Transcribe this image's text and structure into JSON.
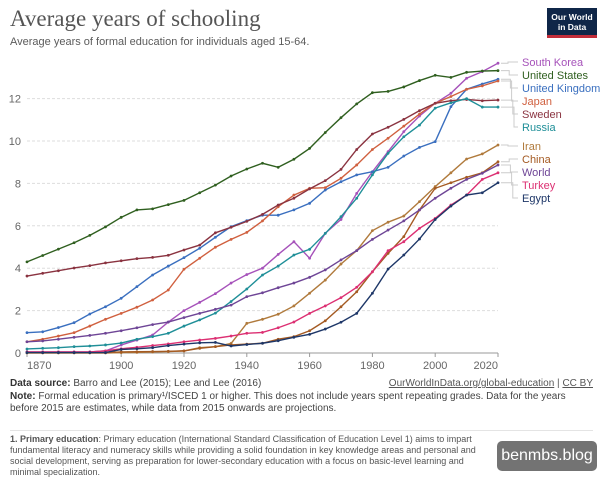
{
  "header": {
    "title": "Average years of schooling",
    "subtitle": "Average years of formal education for individuals aged 15-64.",
    "logo_line1": "Our World",
    "logo_line2": "in Data"
  },
  "chart_data": {
    "type": "line",
    "title": "Average years of schooling",
    "xlabel": "",
    "ylabel": "",
    "xlim": [
      1870,
      2020
    ],
    "ylim": [
      0,
      13.7
    ],
    "x_ticks": [
      1870,
      1900,
      1920,
      1940,
      1960,
      1980,
      2000,
      2020
    ],
    "y_ticks": [
      0,
      2,
      4,
      6,
      8,
      10,
      12
    ],
    "grid": "horizontal dashed",
    "legend": "right, inline labels",
    "x": [
      1870,
      1875,
      1880,
      1885,
      1890,
      1895,
      1900,
      1905,
      1910,
      1915,
      1920,
      1925,
      1930,
      1935,
      1940,
      1945,
      1950,
      1955,
      1960,
      1965,
      1970,
      1975,
      1980,
      1985,
      1990,
      1995,
      2000,
      2005,
      2010,
      2015,
      2020
    ],
    "series": [
      {
        "name": "South Korea",
        "color": "#a652ba",
        "values": [
          0.05,
          0.05,
          0.05,
          0.05,
          0.05,
          0.1,
          0.38,
          0.61,
          0.85,
          1.46,
          2.0,
          2.39,
          2.8,
          3.3,
          3.7,
          4.0,
          4.65,
          5.25,
          4.47,
          5.65,
          6.3,
          7.53,
          8.55,
          9.5,
          10.44,
          11.18,
          11.78,
          12.25,
          12.96,
          13.27,
          13.67
        ]
      },
      {
        "name": "United States",
        "color": "#2f5f1f",
        "values": [
          4.3,
          4.6,
          4.9,
          5.2,
          5.55,
          5.95,
          6.4,
          6.75,
          6.8,
          7.0,
          7.2,
          7.56,
          7.92,
          8.35,
          8.68,
          8.95,
          8.76,
          9.14,
          9.65,
          10.4,
          11.1,
          11.75,
          12.28,
          12.34,
          12.55,
          12.85,
          13.1,
          13.0,
          13.24,
          13.3,
          13.32
        ]
      },
      {
        "name": "United Kingdom",
        "color": "#3a6fbf",
        "values": [
          0.96,
          1.0,
          1.2,
          1.43,
          1.84,
          2.18,
          2.58,
          3.13,
          3.68,
          4.1,
          4.5,
          4.94,
          5.46,
          5.96,
          6.24,
          6.5,
          6.5,
          6.75,
          7.06,
          7.69,
          8.08,
          8.4,
          8.55,
          8.76,
          9.29,
          9.7,
          9.97,
          11.62,
          12.44,
          12.69,
          12.91
        ]
      },
      {
        "name": "Japan",
        "color": "#d0603f",
        "values": [
          0.53,
          0.65,
          0.8,
          0.96,
          1.27,
          1.59,
          1.87,
          2.16,
          2.5,
          2.97,
          3.95,
          4.47,
          4.99,
          5.36,
          5.69,
          6.23,
          6.9,
          7.45,
          7.77,
          7.8,
          8.24,
          8.87,
          9.6,
          10.13,
          10.7,
          11.27,
          11.78,
          12.1,
          12.44,
          12.6,
          12.83
        ]
      },
      {
        "name": "Sweden",
        "color": "#8a3340",
        "values": [
          3.63,
          3.76,
          3.88,
          4.01,
          4.12,
          4.25,
          4.35,
          4.45,
          4.51,
          4.61,
          4.86,
          5.09,
          5.67,
          5.93,
          6.21,
          6.54,
          6.98,
          7.3,
          7.74,
          8.13,
          8.66,
          9.6,
          10.33,
          10.65,
          11.02,
          11.43,
          11.78,
          11.9,
          11.96,
          11.9,
          11.93
        ]
      },
      {
        "name": "Russia",
        "color": "#1f8f98",
        "values": [
          0.19,
          0.22,
          0.25,
          0.3,
          0.33,
          0.38,
          0.47,
          0.65,
          0.77,
          0.93,
          1.27,
          1.56,
          1.88,
          2.43,
          3.02,
          3.68,
          4.1,
          4.62,
          4.89,
          5.64,
          6.43,
          7.3,
          8.4,
          9.42,
          10.2,
          10.75,
          11.55,
          11.8,
          12.0,
          11.6,
          11.6
        ]
      },
      {
        "name": "Iran",
        "color": "#b07a3c",
        "values": [
          0,
          0,
          0,
          0,
          0,
          0,
          0.02,
          0.03,
          0.05,
          0.07,
          0.1,
          0.25,
          0.3,
          0.45,
          1.4,
          1.59,
          1.83,
          2.22,
          2.82,
          3.44,
          4.2,
          4.83,
          5.77,
          6.17,
          6.46,
          7.14,
          7.85,
          8.5,
          9.15,
          9.39,
          9.81
        ]
      },
      {
        "name": "China",
        "color": "#a45a22",
        "values": [
          0.02,
          0.02,
          0.02,
          0.02,
          0.02,
          0.02,
          0.05,
          0.06,
          0.07,
          0.08,
          0.1,
          0.22,
          0.3,
          0.38,
          0.42,
          0.46,
          0.65,
          0.77,
          1.05,
          1.52,
          2.18,
          2.89,
          3.83,
          4.7,
          5.49,
          6.75,
          7.77,
          8.03,
          8.29,
          8.5,
          9.02
        ]
      },
      {
        "name": "World",
        "color": "#6e4596",
        "values": [
          0.53,
          0.57,
          0.65,
          0.74,
          0.83,
          0.93,
          1.05,
          1.19,
          1.34,
          1.46,
          1.67,
          1.87,
          2.06,
          2.26,
          2.66,
          2.84,
          3.08,
          3.3,
          3.57,
          3.92,
          4.39,
          4.83,
          5.36,
          5.8,
          6.23,
          6.75,
          7.3,
          7.77,
          8.19,
          8.48,
          8.87
        ]
      },
      {
        "name": "Turkey",
        "color": "#dc2f72",
        "values": [
          0.05,
          0.05,
          0.05,
          0.05,
          0.05,
          0.1,
          0.2,
          0.27,
          0.35,
          0.43,
          0.53,
          0.61,
          0.69,
          0.8,
          0.93,
          0.97,
          1.19,
          1.46,
          1.87,
          2.22,
          2.61,
          3.1,
          3.83,
          4.83,
          5.25,
          5.88,
          6.35,
          6.98,
          7.45,
          8.19,
          8.5
        ]
      },
      {
        "name": "Egypt",
        "color": "#1e3768",
        "values": [
          0.02,
          0.02,
          0.02,
          0.02,
          0.02,
          0.02,
          0.17,
          0.2,
          0.25,
          0.35,
          0.42,
          0.48,
          0.5,
          0.33,
          0.4,
          0.46,
          0.58,
          0.74,
          0.88,
          1.13,
          1.45,
          1.87,
          2.82,
          3.96,
          4.62,
          5.38,
          6.3,
          6.93,
          7.45,
          7.56,
          8.03
        ]
      }
    ]
  },
  "footer": {
    "source_label": "Data source:",
    "source_text": "Barro and Lee (2015); Lee and Lee (2016)",
    "link_text": "OurWorldInData.org/global-education",
    "separator": "|",
    "license": "CC BY",
    "note_label": "Note:",
    "note_line1": "Formal education is primary¹/ISCED 1 or higher. This does not include years spent repeating grades. Data for the years before",
    "note_line2": "2015 are estimates, while data from 2015 onwards are projections.",
    "footnote_label": "1. Primary education",
    "footnote_text": ": Primary education (International Standard Classification of Education Level 1) aims to impart fundamental literacy and numeracy skills while providing a solid foundation in key knowledge areas and personal and social development, serving as preparation for lower-secondary education with a focus on basic-level learning and minimal specialization."
  },
  "watermark": "benmbs.blog"
}
